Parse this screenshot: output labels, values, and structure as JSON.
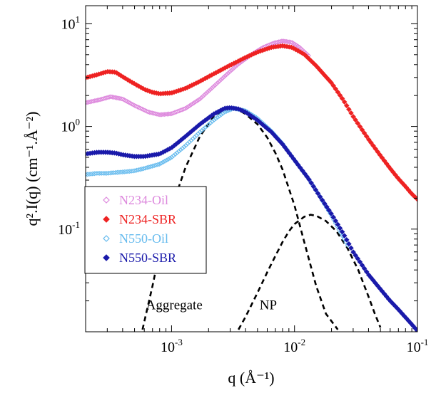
{
  "chart_data": {
    "type": "scatter",
    "xscale": "log",
    "yscale": "log",
    "xlim": [
      0.0002,
      0.1
    ],
    "ylim": [
      0.01,
      15
    ],
    "grid": false,
    "legend_position": "lower-left",
    "xlabel": "q (Å⁻¹)",
    "ylabel": "q².I(q) (cm⁻¹.Å⁻²)",
    "x_ticks": [
      {
        "value": 0.001,
        "base": "10",
        "exp": "-3"
      },
      {
        "value": 0.01,
        "base": "10",
        "exp": "-2"
      },
      {
        "value": 0.1,
        "base": "10",
        "exp": "-1"
      }
    ],
    "y_ticks": [
      {
        "value": 10,
        "base": "10",
        "exp": "1"
      },
      {
        "value": 1,
        "base": "10",
        "exp": "0"
      },
      {
        "value": 0.1,
        "base": "10",
        "exp": "-1"
      }
    ],
    "series": [
      {
        "name": "N234-Oil",
        "color": "#dd88dd",
        "marker": "open-diamond",
        "points": [
          [
            0.0002,
            1.7
          ],
          [
            0.00026,
            1.82
          ],
          [
            0.00032,
            1.95
          ],
          [
            0.0004,
            1.85
          ],
          [
            0.0005,
            1.6
          ],
          [
            0.00065,
            1.38
          ],
          [
            0.0008,
            1.3
          ],
          [
            0.001,
            1.33
          ],
          [
            0.0013,
            1.5
          ],
          [
            0.0017,
            1.85
          ],
          [
            0.0022,
            2.45
          ],
          [
            0.0028,
            3.2
          ],
          [
            0.0035,
            4.05
          ],
          [
            0.0045,
            5.05
          ],
          [
            0.0055,
            5.85
          ],
          [
            0.0068,
            6.5
          ],
          [
            0.008,
            6.8
          ],
          [
            0.0095,
            6.6
          ],
          [
            0.011,
            5.9
          ],
          [
            0.013,
            4.9
          ]
        ]
      },
      {
        "name": "N234-SBR",
        "color": "#ee2222",
        "marker": "filled-diamond",
        "points": [
          [
            0.0002,
            2.98
          ],
          [
            0.00025,
            3.2
          ],
          [
            0.0003,
            3.42
          ],
          [
            0.00035,
            3.38
          ],
          [
            0.0004,
            3.05
          ],
          [
            0.0005,
            2.6
          ],
          [
            0.0006,
            2.3
          ],
          [
            0.0007,
            2.15
          ],
          [
            0.0008,
            2.08
          ],
          [
            0.001,
            2.12
          ],
          [
            0.0013,
            2.35
          ],
          [
            0.0017,
            2.75
          ],
          [
            0.0022,
            3.25
          ],
          [
            0.003,
            3.95
          ],
          [
            0.004,
            4.7
          ],
          [
            0.005,
            5.3
          ],
          [
            0.0065,
            5.9
          ],
          [
            0.008,
            6.1
          ],
          [
            0.0095,
            5.9
          ],
          [
            0.012,
            5.05
          ],
          [
            0.015,
            3.9
          ],
          [
            0.02,
            2.65
          ],
          [
            0.025,
            1.8
          ],
          [
            0.03,
            1.25
          ],
          [
            0.04,
            0.75
          ],
          [
            0.05,
            0.52
          ],
          [
            0.06,
            0.39
          ],
          [
            0.07,
            0.31
          ],
          [
            0.08,
            0.26
          ],
          [
            0.09,
            0.22
          ],
          [
            0.1,
            0.195
          ]
        ]
      },
      {
        "name": "N550-Oil",
        "color": "#66bbee",
        "marker": "open-diamond",
        "points": [
          [
            0.0002,
            0.34
          ],
          [
            0.00025,
            0.35
          ],
          [
            0.0003,
            0.35
          ],
          [
            0.0004,
            0.36
          ],
          [
            0.0005,
            0.37
          ],
          [
            0.0006,
            0.39
          ],
          [
            0.0008,
            0.43
          ],
          [
            0.001,
            0.5
          ],
          [
            0.0013,
            0.65
          ],
          [
            0.0017,
            0.88
          ],
          [
            0.0022,
            1.15
          ],
          [
            0.0027,
            1.38
          ],
          [
            0.0032,
            1.5
          ],
          [
            0.004,
            1.42
          ],
          [
            0.005,
            1.2
          ],
          [
            0.0065,
            0.9
          ],
          [
            0.008,
            0.68
          ],
          [
            0.01,
            0.47
          ],
          [
            0.013,
            0.31
          ],
          [
            0.016,
            0.21
          ],
          [
            0.02,
            0.135
          ],
          [
            0.024,
            0.09
          ],
          [
            0.028,
            0.065
          ]
        ]
      },
      {
        "name": "N550-SBR",
        "color": "#1a1aaa",
        "marker": "filled-diamond",
        "points": [
          [
            0.0002,
            0.54
          ],
          [
            0.00025,
            0.56
          ],
          [
            0.0003,
            0.56
          ],
          [
            0.00035,
            0.55
          ],
          [
            0.0004,
            0.53
          ],
          [
            0.0005,
            0.51
          ],
          [
            0.0006,
            0.51
          ],
          [
            0.0008,
            0.54
          ],
          [
            0.001,
            0.62
          ],
          [
            0.0013,
            0.8
          ],
          [
            0.0017,
            1.05
          ],
          [
            0.0022,
            1.32
          ],
          [
            0.0027,
            1.5
          ],
          [
            0.003,
            1.52
          ],
          [
            0.0035,
            1.48
          ],
          [
            0.004,
            1.38
          ],
          [
            0.005,
            1.15
          ],
          [
            0.0065,
            0.88
          ],
          [
            0.008,
            0.67
          ],
          [
            0.01,
            0.47
          ],
          [
            0.013,
            0.31
          ],
          [
            0.016,
            0.21
          ],
          [
            0.02,
            0.14
          ],
          [
            0.025,
            0.09
          ],
          [
            0.03,
            0.06
          ],
          [
            0.04,
            0.036
          ],
          [
            0.05,
            0.026
          ],
          [
            0.06,
            0.02
          ],
          [
            0.07,
            0.0165
          ],
          [
            0.08,
            0.0138
          ],
          [
            0.09,
            0.0118
          ],
          [
            0.1,
            0.0102
          ]
        ]
      }
    ],
    "fit_curves": [
      {
        "label": "Aggregate",
        "style": "dashed",
        "color": "#000000",
        "points": [
          [
            0.00058,
            0.0105
          ],
          [
            0.0007,
            0.028
          ],
          [
            0.0008,
            0.06
          ],
          [
            0.001,
            0.16
          ],
          [
            0.0013,
            0.4
          ],
          [
            0.0017,
            0.8
          ],
          [
            0.0022,
            1.25
          ],
          [
            0.0027,
            1.45
          ],
          [
            0.003,
            1.5
          ],
          [
            0.0035,
            1.45
          ],
          [
            0.004,
            1.32
          ],
          [
            0.005,
            1.05
          ],
          [
            0.006,
            0.78
          ],
          [
            0.007,
            0.55
          ],
          [
            0.008,
            0.38
          ],
          [
            0.01,
            0.17
          ],
          [
            0.012,
            0.075
          ],
          [
            0.015,
            0.028
          ],
          [
            0.018,
            0.015
          ],
          [
            0.0225,
            0.0105
          ]
        ]
      },
      {
        "label": "NP",
        "style": "dashed",
        "color": "#000000",
        "points": [
          [
            0.0035,
            0.0105
          ],
          [
            0.004,
            0.014
          ],
          [
            0.005,
            0.024
          ],
          [
            0.006,
            0.038
          ],
          [
            0.007,
            0.055
          ],
          [
            0.008,
            0.075
          ],
          [
            0.009,
            0.095
          ],
          [
            0.01,
            0.112
          ],
          [
            0.012,
            0.132
          ],
          [
            0.0135,
            0.138
          ],
          [
            0.015,
            0.135
          ],
          [
            0.018,
            0.12
          ],
          [
            0.022,
            0.095
          ],
          [
            0.027,
            0.065
          ],
          [
            0.033,
            0.04
          ],
          [
            0.04,
            0.022
          ],
          [
            0.045,
            0.015
          ],
          [
            0.05,
            0.011
          ]
        ]
      }
    ],
    "annotations": [
      {
        "text": "Aggregate",
        "x": 0.00062,
        "y": 0.0165
      },
      {
        "text": "NP",
        "x": 0.0052,
        "y": 0.0165
      }
    ]
  }
}
